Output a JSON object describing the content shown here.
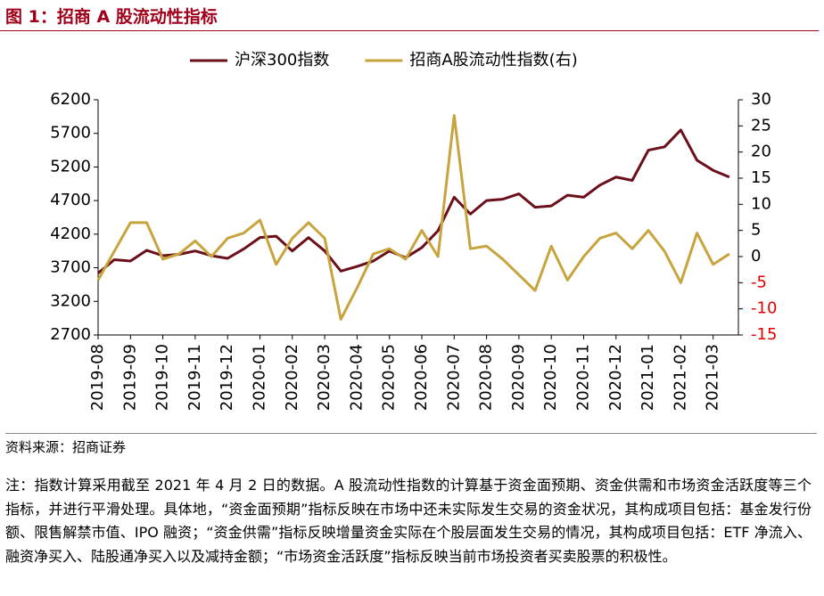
{
  "title": "图 1：招商 A 股流动性指标",
  "chart_data": {
    "type": "line",
    "categories": [
      "2019-08",
      null,
      "2019-09",
      null,
      "2019-10",
      null,
      "2019-11",
      null,
      "2019-12",
      null,
      "2020-01",
      null,
      "2020-02",
      null,
      "2020-03",
      null,
      "2020-04",
      null,
      "2020-05",
      null,
      "2020-06",
      null,
      "2020-07",
      null,
      "2020-08",
      null,
      "2020-09",
      null,
      "2020-10",
      null,
      "2020-11",
      null,
      "2020-12",
      null,
      "2021-01",
      null,
      "2021-02",
      null,
      "2021-03",
      null
    ],
    "series": [
      {
        "name": "沪深300指数",
        "color": "#6b0f1a",
        "values": [
          3620,
          3820,
          3800,
          3960,
          3880,
          3900,
          3950,
          3880,
          3840,
          3980,
          4150,
          4170,
          3950,
          4150,
          3950,
          3650,
          3720,
          3800,
          3950,
          3850,
          4000,
          4250,
          4750,
          4500,
          4700,
          4720,
          4800,
          4600,
          4620,
          4780,
          4750,
          4930,
          5050,
          5000,
          5450,
          5500,
          5750,
          5300,
          5150,
          5050
        ]
      },
      {
        "name": "招商A股流动性指数(右)",
        "color": "#c8a43e",
        "axis": "y2",
        "values": [
          -4.5,
          1,
          6.5,
          6.5,
          -0.5,
          0.5,
          3,
          0,
          3.5,
          4.5,
          7,
          -1.5,
          3.5,
          6.5,
          3.5,
          -12,
          -6,
          0.5,
          1.5,
          -0.5,
          5,
          0,
          27,
          1.5,
          2,
          -0.5,
          -3.5,
          -6.5,
          2,
          -4.5,
          0,
          3.5,
          4.5,
          1.5,
          5,
          1,
          -5,
          4.5,
          -1.5,
          0.5
        ]
      }
    ],
    "ylim": [
      2700,
      6200
    ],
    "yticks": [
      2700,
      3200,
      3700,
      4200,
      4700,
      5200,
      5700,
      6200
    ],
    "y2lim": [
      -15,
      30
    ],
    "y2ticks": [
      -15,
      -10,
      -5,
      0,
      5,
      10,
      15,
      20,
      25,
      30
    ],
    "negative_color": "#e00000",
    "legend": "top"
  },
  "source": "资料来源：招商证券",
  "note": "注：指数计算采用截至 2021 年 4 月 2 日的数据。A 股流动性指数的计算基于资金面预期、资金供需和市场资金活跃度等三个指标，并进行平滑处理。具体地，“资金面预期”指标反映在市场中还未实际发生交易的资金状况，其构成项目包括：基金发行份额、限售解禁市值、IPO 融资；“资金供需”指标反映增量资金实际在个股层面发生交易的情况，其构成项目包括：ETF 净流入、融资净买入、陆股通净买入以及减持金额；“市场资金活跃度”指标反映当前市场投资者买卖股票的积极性。"
}
